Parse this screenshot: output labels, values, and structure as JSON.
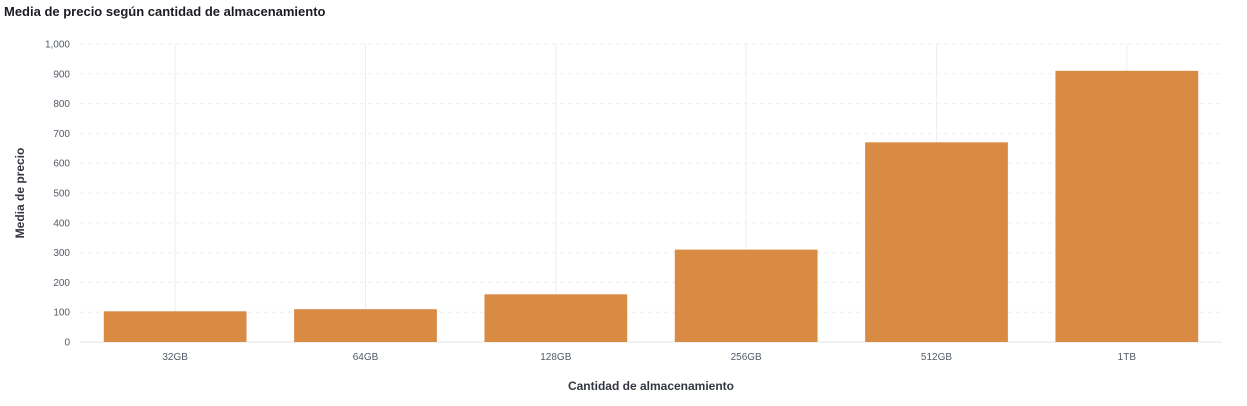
{
  "chart_data": {
    "type": "bar",
    "title": "Media de precio según cantidad de almacenamiento",
    "xlabel": "Cantidad de almacenamiento",
    "ylabel": "Media de precio",
    "categories": [
      "32GB",
      "64GB",
      "128GB",
      "256GB",
      "512GB",
      "1TB"
    ],
    "values": [
      103,
      110,
      160,
      310,
      670,
      910
    ],
    "ylim": [
      0,
      1000
    ],
    "yticks": [
      0,
      100,
      200,
      300,
      400,
      500,
      600,
      700,
      800,
      900,
      1000
    ],
    "ytick_labels": [
      "0",
      "100",
      "200",
      "300",
      "400",
      "500",
      "600",
      "700",
      "800",
      "900",
      "1,000"
    ],
    "grid": true,
    "legend": "none",
    "bar_color": "#d98b43"
  }
}
